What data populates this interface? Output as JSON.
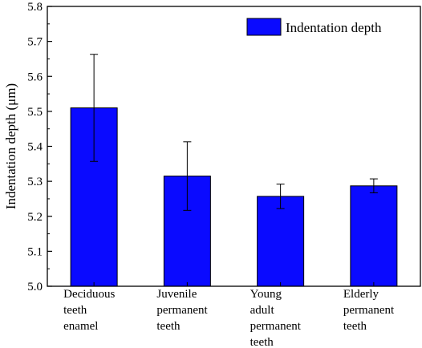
{
  "chart_data": {
    "type": "bar",
    "categories": [
      [
        "Deciduous",
        "teeth",
        "enamel"
      ],
      [
        "Juvenile",
        "permanent",
        "teeth"
      ],
      [
        "Young",
        "adult",
        "permanent",
        "teeth"
      ],
      [
        "Elderly",
        "permanent",
        "teeth"
      ]
    ],
    "series": [
      {
        "name": "Indentation depth",
        "values": [
          5.51,
          5.315,
          5.257,
          5.287
        ],
        "error": [
          0.153,
          0.098,
          0.035,
          0.02
        ],
        "color": "#0a0aff"
      }
    ],
    "title": "",
    "xlabel": "",
    "ylabel": "Indentation depth (μm)",
    "ylim": [
      5.0,
      5.8
    ],
    "yticks": [
      "5.0",
      "5.1",
      "5.2",
      "5.3",
      "5.4",
      "5.5",
      "5.6",
      "5.7",
      "5.8"
    ],
    "grid": false,
    "legend_position": "top-right"
  }
}
